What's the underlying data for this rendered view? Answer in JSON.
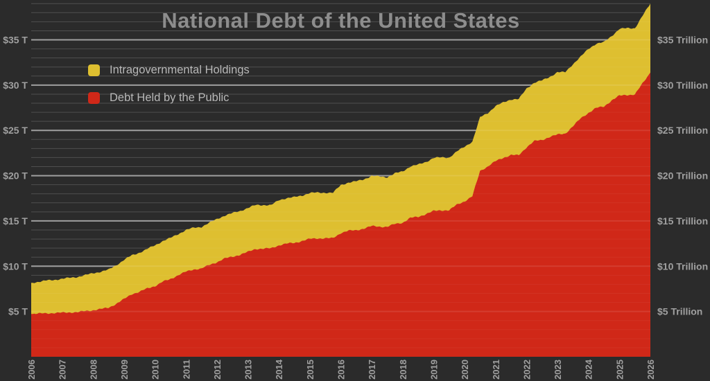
{
  "title": "National Debt of the United States",
  "legend": {
    "items": [
      {
        "label": "Intragovernmental Holdings",
        "color": "#debf30"
      },
      {
        "label": "Debt Held by the Public",
        "color": "#d02818"
      }
    ]
  },
  "colors": {
    "background": "#2b2b2b",
    "title_text": "#8d8d8d",
    "axis_text": "#a0a0a0",
    "legend_text": "#b8b8b8",
    "gridline_major": "rgba(255,255,255,0.50)",
    "gridline_minor": "rgba(255,255,255,0.13)",
    "gridline_major_over_fill": "rgba(255,255,255,0.10)",
    "gridline_minor_over_fill": "rgba(255,255,255,0.05)",
    "area_intragovernmental": "#debf30",
    "area_public": "#d02818"
  },
  "axes": {
    "left_tick_labels": [
      "$5 T",
      "$10 T",
      "$15 T",
      "$20 T",
      "$25 T",
      "$30 T",
      "$35 T"
    ],
    "right_tick_labels": [
      "$5 Trillion",
      "$10 Trillion",
      "$15 Trillion",
      "$20 Trillion",
      "$25 Trillion",
      "$30 Trillion",
      "$35 Trillion"
    ],
    "x_tick_labels": [
      "2006",
      "2007",
      "2008",
      "2009",
      "2010",
      "2011",
      "2012",
      "2013",
      "2014",
      "2015",
      "2016",
      "2017",
      "2018",
      "2019",
      "2020",
      "2021",
      "2022",
      "2023",
      "2024",
      "2025",
      "2026"
    ]
  },
  "chart_data": {
    "type": "area",
    "stacked": true,
    "title": "National Debt of the United States",
    "unit": "trillions of USD",
    "xlim": [
      2006,
      2026
    ],
    "ylim": [
      0,
      39.4
    ],
    "y_major_step": 5,
    "y_minor_step": 1,
    "grid": true,
    "legend_position": "upper-left",
    "x": [
      2006.0,
      2006.25,
      2006.5,
      2006.75,
      2007.0,
      2007.25,
      2007.5,
      2007.75,
      2008.0,
      2008.25,
      2008.5,
      2008.75,
      2009.0,
      2009.25,
      2009.5,
      2009.75,
      2010.0,
      2010.25,
      2010.5,
      2010.75,
      2011.0,
      2011.25,
      2011.5,
      2011.75,
      2012.0,
      2012.25,
      2012.5,
      2012.75,
      2013.0,
      2013.25,
      2013.5,
      2013.75,
      2014.0,
      2014.25,
      2014.5,
      2014.75,
      2015.0,
      2015.25,
      2015.5,
      2015.75,
      2016.0,
      2016.25,
      2016.5,
      2016.75,
      2017.0,
      2017.25,
      2017.5,
      2017.75,
      2018.0,
      2018.25,
      2018.5,
      2018.75,
      2019.0,
      2019.25,
      2019.5,
      2019.75,
      2020.0,
      2020.25,
      2020.5,
      2020.75,
      2021.0,
      2021.25,
      2021.5,
      2021.75,
      2022.0,
      2022.25,
      2022.5,
      2022.75,
      2023.0,
      2023.25,
      2023.5,
      2023.75,
      2024.0,
      2024.25,
      2024.5,
      2024.75,
      2025.0,
      2025.25,
      2025.5,
      2025.75,
      2026.0
    ],
    "series": [
      {
        "name": "Debt Held by the Public",
        "color": "#d02818",
        "values": [
          4.72,
          4.77,
          4.8,
          4.83,
          4.87,
          4.9,
          4.93,
          5.05,
          5.14,
          5.27,
          5.42,
          5.85,
          6.37,
          6.93,
          7.17,
          7.55,
          7.81,
          8.29,
          8.58,
          9.02,
          9.39,
          9.65,
          9.74,
          10.13,
          10.45,
          10.85,
          11.05,
          11.27,
          11.58,
          11.91,
          11.93,
          11.98,
          12.31,
          12.5,
          12.57,
          12.79,
          13.02,
          13.08,
          13.08,
          13.1,
          13.67,
          13.92,
          13.97,
          14.17,
          14.43,
          14.38,
          14.34,
          14.67,
          14.81,
          15.34,
          15.46,
          15.76,
          16.1,
          16.18,
          16.17,
          16.8,
          17.17,
          17.72,
          20.53,
          21.02,
          21.6,
          21.98,
          22.28,
          22.25,
          23.14,
          23.82,
          23.93,
          24.29,
          24.53,
          24.65,
          25.46,
          26.33,
          26.94,
          27.48,
          27.63,
          28.31,
          28.83,
          28.92,
          28.96,
          30.2,
          31.4
        ]
      },
      {
        "name": "Intragovernmental Holdings",
        "color": "#debf30",
        "values": [
          3.44,
          3.52,
          3.62,
          3.66,
          3.74,
          3.82,
          3.89,
          3.97,
          4.09,
          4.13,
          4.2,
          4.27,
          4.33,
          4.27,
          4.33,
          4.36,
          4.5,
          4.5,
          4.54,
          4.54,
          4.62,
          4.6,
          4.6,
          4.66,
          4.77,
          4.74,
          4.81,
          4.84,
          4.85,
          4.85,
          4.83,
          4.76,
          4.99,
          5.03,
          5.05,
          5.02,
          5.08,
          5.04,
          5.04,
          5.01,
          5.3,
          5.32,
          5.4,
          5.44,
          5.54,
          5.53,
          5.49,
          5.58,
          5.66,
          5.7,
          5.75,
          5.76,
          5.87,
          5.83,
          5.83,
          5.87,
          6.03,
          6.05,
          5.92,
          5.91,
          6.09,
          6.1,
          6.15,
          6.21,
          6.48,
          6.46,
          6.58,
          6.62,
          6.9,
          6.77,
          6.87,
          6.81,
          7.07,
          7.1,
          7.11,
          7.12,
          7.38,
          7.36,
          7.33,
          7.46,
          7.6
        ]
      }
    ]
  }
}
